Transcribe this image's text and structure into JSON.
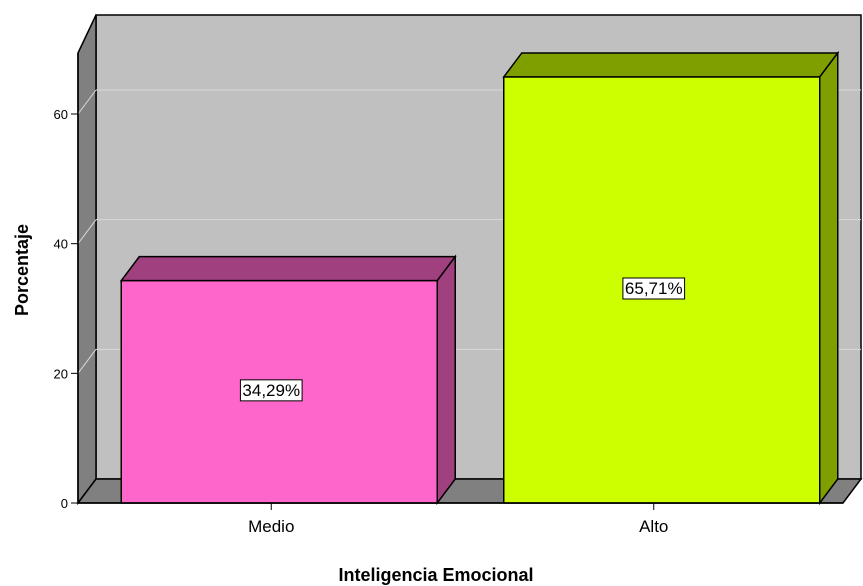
{
  "chart_data": {
    "type": "bar",
    "categories": [
      "Medio",
      "Alto"
    ],
    "values": [
      34.29,
      65.71
    ],
    "data_labels": [
      "34,29%",
      "65,71%"
    ],
    "xlabel": "Inteligencia Emocional",
    "ylabel": "Porcentaje",
    "ylim": [
      0,
      70
    ],
    "yticks": [
      0,
      20,
      40,
      60
    ],
    "grid": true,
    "style": "3d",
    "colors": {
      "bars": [
        "#ff66cc",
        "#ccff00"
      ],
      "bar_tops": [
        "#a0407e",
        "#7f9f00"
      ],
      "bar_sides": [
        "#a0407e",
        "#7f9f00"
      ],
      "plot_background": "#c0c0c0",
      "floor": "#808080",
      "left_wall": "#808080",
      "gridline": "#d8d8d8"
    }
  }
}
